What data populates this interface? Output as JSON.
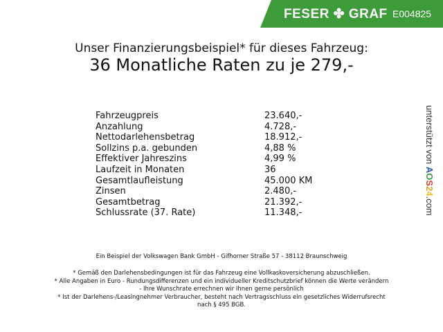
{
  "header": {
    "brand": "FESER ✤ GRAF",
    "code": "E004825",
    "brand_color": "#3d9b3a"
  },
  "title": {
    "line1": "Unser Finanzierungsbeispiel* für dieses Fahrzeug:",
    "line2": "36 Monatliche Raten zu je 279,-"
  },
  "rows": [
    {
      "label": "Fahrzeugpreis",
      "value": "23.640,-"
    },
    {
      "label": "Anzahlung",
      "value": "4.728,-"
    },
    {
      "label": "Nettodarlehensbetrag",
      "value": "18.912,-"
    },
    {
      "label": "Sollzins p.a. gebunden",
      "value": "4,88 %"
    },
    {
      "label": "Effektiver Jahreszins",
      "value": "4,99 %"
    },
    {
      "label": "Laufzeit in Monaten",
      "value": "36"
    },
    {
      "label": "Gesamtlaufleistung",
      "value": "45.000 KM"
    },
    {
      "label": "Zinsen",
      "value": "2.480,-"
    },
    {
      "label": "Gesamtbetrag",
      "value": "21.392,-"
    },
    {
      "label": "Schlussrate (37. Rate)",
      "value": "11.348,-"
    }
  ],
  "side": {
    "prefix": "unterstützt von",
    "aos": [
      "A",
      "O",
      "S",
      "2",
      "4"
    ],
    "suffix": ".com",
    "aos_colors": [
      "#1f5fa8",
      "#3a9a3a",
      "#d63b2f",
      "#e0a020",
      "#e6c21f"
    ]
  },
  "footer": {
    "bank": "Ein Beispiel der Volkswagen Bank GmbH - Gifhorner Straße 57 - 38112 Braunschweig",
    "note1": "* Gemäß den Darlehensbedingungen ist für das Fahrzeug eine Vollkaskoversicherung abzuschließen.",
    "note2a": "* Alle Angaben in Euro - Rundungsdifferenzen und ein individueller Kreditschutzbrief können die Werte verändern",
    "note2b": "- Ihre Wunschrate errechnen wir Ihnen gerne persönlich",
    "note3a": "* Ist der Darlehens-/Leasingnehmer Verbraucher, besteht nach Vertragsschluss ein gesetzliches Widerrufsrecht",
    "note3b": "nach § 495 BGB."
  }
}
